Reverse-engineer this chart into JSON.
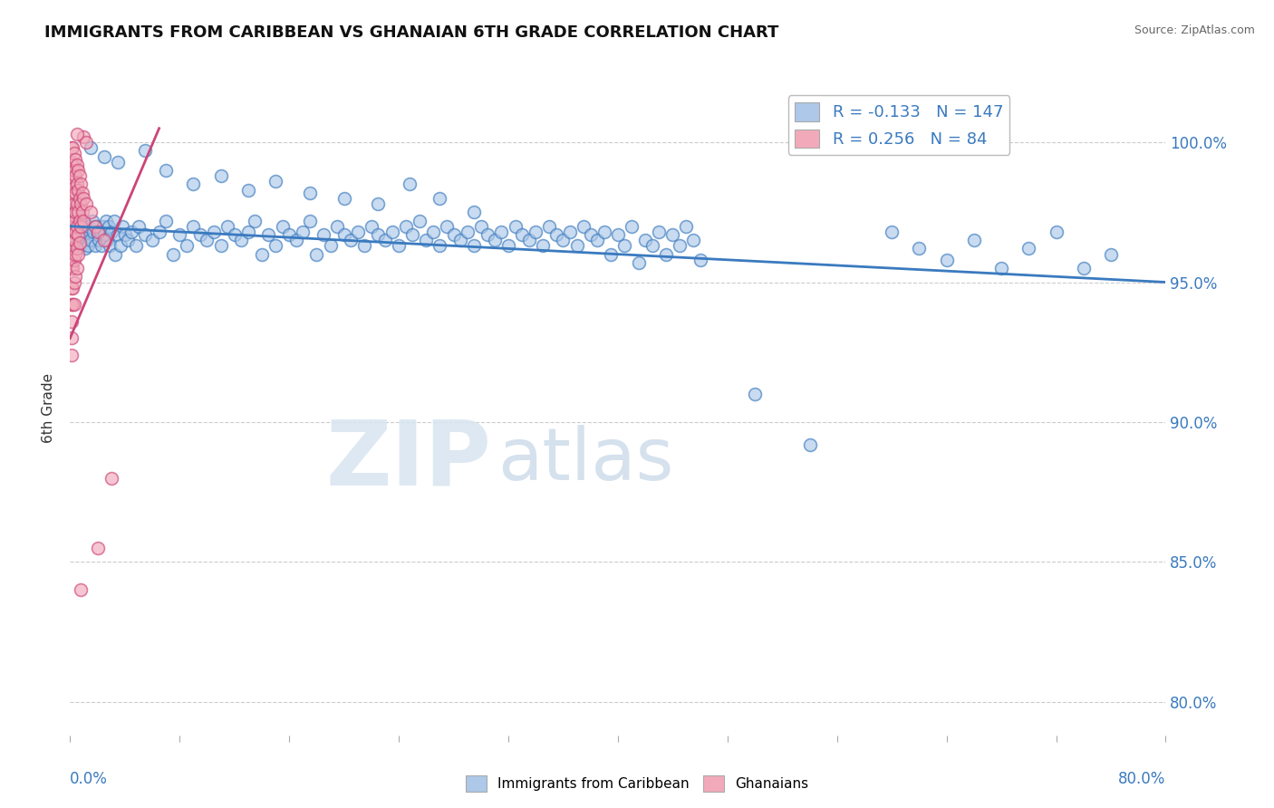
{
  "title": "IMMIGRANTS FROM CARIBBEAN VS GHANAIAN 6TH GRADE CORRELATION CHART",
  "source": "Source: ZipAtlas.com",
  "ylabel": "6th Grade",
  "yaxis_labels": [
    "100.0%",
    "95.0%",
    "90.0%",
    "85.0%",
    "80.0%"
  ],
  "yaxis_values": [
    1.0,
    0.95,
    0.9,
    0.85,
    0.8
  ],
  "xlim": [
    0.0,
    0.8
  ],
  "ylim": [
    0.788,
    1.022
  ],
  "legend_blue_R": "-0.133",
  "legend_blue_N": "147",
  "legend_pink_R": "0.256",
  "legend_pink_N": "84",
  "blue_color": "#adc8e8",
  "pink_color": "#f2aabb",
  "blue_line_color": "#3a7abf",
  "pink_line_color": "#cc4477",
  "blue_trendline": [
    [
      0.0,
      0.97
    ],
    [
      0.8,
      0.95
    ]
  ],
  "pink_trendline": [
    [
      0.0,
      0.93
    ],
    [
      0.065,
      1.005
    ]
  ],
  "blue_dots": [
    [
      0.001,
      0.971
    ],
    [
      0.002,
      0.975
    ],
    [
      0.002,
      0.968
    ],
    [
      0.003,
      0.972
    ],
    [
      0.003,
      0.965
    ],
    [
      0.004,
      0.97
    ],
    [
      0.004,
      0.963
    ],
    [
      0.005,
      0.968
    ],
    [
      0.005,
      0.972
    ],
    [
      0.006,
      0.966
    ],
    [
      0.006,
      0.97
    ],
    [
      0.007,
      0.974
    ],
    [
      0.007,
      0.967
    ],
    [
      0.008,
      0.963
    ],
    [
      0.008,
      0.971
    ],
    [
      0.009,
      0.968
    ],
    [
      0.01,
      0.965
    ],
    [
      0.01,
      0.972
    ],
    [
      0.011,
      0.962
    ],
    [
      0.012,
      0.968
    ],
    [
      0.013,
      0.963
    ],
    [
      0.014,
      0.97
    ],
    [
      0.015,
      0.965
    ],
    [
      0.016,
      0.972
    ],
    [
      0.017,
      0.968
    ],
    [
      0.018,
      0.963
    ],
    [
      0.019,
      0.97
    ],
    [
      0.02,
      0.967
    ],
    [
      0.021,
      0.965
    ],
    [
      0.022,
      0.968
    ],
    [
      0.023,
      0.963
    ],
    [
      0.024,
      0.97
    ],
    [
      0.025,
      0.967
    ],
    [
      0.026,
      0.972
    ],
    [
      0.027,
      0.965
    ],
    [
      0.028,
      0.97
    ],
    [
      0.029,
      0.963
    ],
    [
      0.03,
      0.968
    ],
    [
      0.032,
      0.972
    ],
    [
      0.033,
      0.96
    ],
    [
      0.035,
      0.967
    ],
    [
      0.037,
      0.963
    ],
    [
      0.038,
      0.97
    ],
    [
      0.04,
      0.967
    ],
    [
      0.042,
      0.965
    ],
    [
      0.045,
      0.968
    ],
    [
      0.048,
      0.963
    ],
    [
      0.05,
      0.97
    ],
    [
      0.055,
      0.967
    ],
    [
      0.06,
      0.965
    ],
    [
      0.065,
      0.968
    ],
    [
      0.07,
      0.972
    ],
    [
      0.075,
      0.96
    ],
    [
      0.08,
      0.967
    ],
    [
      0.085,
      0.963
    ],
    [
      0.09,
      0.97
    ],
    [
      0.095,
      0.967
    ],
    [
      0.1,
      0.965
    ],
    [
      0.105,
      0.968
    ],
    [
      0.11,
      0.963
    ],
    [
      0.115,
      0.97
    ],
    [
      0.12,
      0.967
    ],
    [
      0.125,
      0.965
    ],
    [
      0.13,
      0.968
    ],
    [
      0.135,
      0.972
    ],
    [
      0.14,
      0.96
    ],
    [
      0.145,
      0.967
    ],
    [
      0.15,
      0.963
    ],
    [
      0.155,
      0.97
    ],
    [
      0.16,
      0.967
    ],
    [
      0.165,
      0.965
    ],
    [
      0.17,
      0.968
    ],
    [
      0.175,
      0.972
    ],
    [
      0.18,
      0.96
    ],
    [
      0.185,
      0.967
    ],
    [
      0.19,
      0.963
    ],
    [
      0.195,
      0.97
    ],
    [
      0.2,
      0.967
    ],
    [
      0.205,
      0.965
    ],
    [
      0.21,
      0.968
    ],
    [
      0.215,
      0.963
    ],
    [
      0.22,
      0.97
    ],
    [
      0.225,
      0.967
    ],
    [
      0.23,
      0.965
    ],
    [
      0.235,
      0.968
    ],
    [
      0.24,
      0.963
    ],
    [
      0.245,
      0.97
    ],
    [
      0.25,
      0.967
    ],
    [
      0.255,
      0.972
    ],
    [
      0.26,
      0.965
    ],
    [
      0.265,
      0.968
    ],
    [
      0.27,
      0.963
    ],
    [
      0.275,
      0.97
    ],
    [
      0.28,
      0.967
    ],
    [
      0.285,
      0.965
    ],
    [
      0.29,
      0.968
    ],
    [
      0.295,
      0.963
    ],
    [
      0.3,
      0.97
    ],
    [
      0.305,
      0.967
    ],
    [
      0.31,
      0.965
    ],
    [
      0.315,
      0.968
    ],
    [
      0.32,
      0.963
    ],
    [
      0.325,
      0.97
    ],
    [
      0.33,
      0.967
    ],
    [
      0.335,
      0.965
    ],
    [
      0.34,
      0.968
    ],
    [
      0.345,
      0.963
    ],
    [
      0.35,
      0.97
    ],
    [
      0.355,
      0.967
    ],
    [
      0.36,
      0.965
    ],
    [
      0.365,
      0.968
    ],
    [
      0.37,
      0.963
    ],
    [
      0.375,
      0.97
    ],
    [
      0.38,
      0.967
    ],
    [
      0.385,
      0.965
    ],
    [
      0.39,
      0.968
    ],
    [
      0.395,
      0.96
    ],
    [
      0.4,
      0.967
    ],
    [
      0.405,
      0.963
    ],
    [
      0.41,
      0.97
    ],
    [
      0.415,
      0.957
    ],
    [
      0.42,
      0.965
    ],
    [
      0.425,
      0.963
    ],
    [
      0.43,
      0.968
    ],
    [
      0.435,
      0.96
    ],
    [
      0.44,
      0.967
    ],
    [
      0.445,
      0.963
    ],
    [
      0.45,
      0.97
    ],
    [
      0.455,
      0.965
    ],
    [
      0.46,
      0.958
    ],
    [
      0.015,
      0.998
    ],
    [
      0.025,
      0.995
    ],
    [
      0.035,
      0.993
    ],
    [
      0.055,
      0.997
    ],
    [
      0.07,
      0.99
    ],
    [
      0.09,
      0.985
    ],
    [
      0.11,
      0.988
    ],
    [
      0.13,
      0.983
    ],
    [
      0.15,
      0.986
    ],
    [
      0.175,
      0.982
    ],
    [
      0.2,
      0.98
    ],
    [
      0.225,
      0.978
    ],
    [
      0.248,
      0.985
    ],
    [
      0.27,
      0.98
    ],
    [
      0.295,
      0.975
    ],
    [
      0.5,
      0.91
    ],
    [
      0.54,
      0.892
    ],
    [
      0.6,
      0.968
    ],
    [
      0.62,
      0.962
    ],
    [
      0.64,
      0.958
    ],
    [
      0.66,
      0.965
    ],
    [
      0.68,
      0.955
    ],
    [
      0.7,
      0.962
    ],
    [
      0.72,
      0.968
    ],
    [
      0.74,
      0.955
    ],
    [
      0.76,
      0.96
    ]
  ],
  "pink_dots": [
    [
      0.001,
      0.998
    ],
    [
      0.001,
      0.993
    ],
    [
      0.001,
      0.988
    ],
    [
      0.001,
      0.982
    ],
    [
      0.001,
      0.975
    ],
    [
      0.001,
      0.97
    ],
    [
      0.001,
      0.965
    ],
    [
      0.001,
      0.96
    ],
    [
      0.001,
      0.955
    ],
    [
      0.001,
      0.948
    ],
    [
      0.001,
      0.942
    ],
    [
      0.001,
      0.936
    ],
    [
      0.001,
      0.93
    ],
    [
      0.001,
      0.924
    ],
    [
      0.002,
      0.998
    ],
    [
      0.002,
      0.992
    ],
    [
      0.002,
      0.986
    ],
    [
      0.002,
      0.98
    ],
    [
      0.002,
      0.974
    ],
    [
      0.002,
      0.968
    ],
    [
      0.002,
      0.962
    ],
    [
      0.002,
      0.955
    ],
    [
      0.002,
      0.948
    ],
    [
      0.002,
      0.942
    ],
    [
      0.003,
      0.996
    ],
    [
      0.003,
      0.99
    ],
    [
      0.003,
      0.984
    ],
    [
      0.003,
      0.978
    ],
    [
      0.003,
      0.972
    ],
    [
      0.003,
      0.965
    ],
    [
      0.003,
      0.958
    ],
    [
      0.003,
      0.95
    ],
    [
      0.003,
      0.942
    ],
    [
      0.004,
      0.994
    ],
    [
      0.004,
      0.988
    ],
    [
      0.004,
      0.982
    ],
    [
      0.004,
      0.975
    ],
    [
      0.004,
      0.968
    ],
    [
      0.004,
      0.96
    ],
    [
      0.004,
      0.952
    ],
    [
      0.005,
      0.992
    ],
    [
      0.005,
      0.985
    ],
    [
      0.005,
      0.978
    ],
    [
      0.005,
      0.97
    ],
    [
      0.005,
      0.962
    ],
    [
      0.005,
      0.955
    ],
    [
      0.006,
      0.99
    ],
    [
      0.006,
      0.983
    ],
    [
      0.006,
      0.975
    ],
    [
      0.006,
      0.967
    ],
    [
      0.006,
      0.96
    ],
    [
      0.007,
      0.988
    ],
    [
      0.007,
      0.98
    ],
    [
      0.007,
      0.972
    ],
    [
      0.007,
      0.964
    ],
    [
      0.008,
      0.985
    ],
    [
      0.008,
      0.978
    ],
    [
      0.008,
      0.97
    ],
    [
      0.009,
      0.982
    ],
    [
      0.009,
      0.975
    ],
    [
      0.01,
      0.98
    ],
    [
      0.01,
      0.972
    ],
    [
      0.012,
      0.978
    ],
    [
      0.015,
      0.975
    ],
    [
      0.018,
      0.97
    ],
    [
      0.02,
      0.968
    ],
    [
      0.025,
      0.965
    ],
    [
      0.03,
      0.88
    ],
    [
      0.01,
      1.002
    ],
    [
      0.012,
      1.0
    ],
    [
      0.005,
      1.003
    ],
    [
      0.008,
      0.84
    ],
    [
      0.02,
      0.855
    ]
  ]
}
